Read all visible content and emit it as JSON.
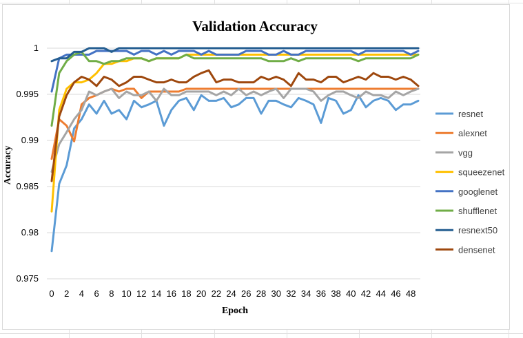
{
  "chart_data": {
    "type": "line",
    "title": "Validation Accuracy",
    "xlabel": "Epoch",
    "ylabel": "Accuracy",
    "ylim": [
      0.975,
      1.0
    ],
    "yticks": [
      "0.975",
      "0.98",
      "0.985",
      "0.99",
      "0.995",
      "1"
    ],
    "xticks": [
      "0",
      "2",
      "4",
      "6",
      "8",
      "10",
      "12",
      "14",
      "16",
      "18",
      "20",
      "22",
      "24",
      "26",
      "28",
      "30",
      "32",
      "34",
      "36",
      "38",
      "40",
      "42",
      "44",
      "46",
      "48"
    ],
    "grid": "horizontal",
    "legend_position": "right",
    "x": [
      0,
      1,
      2,
      3,
      4,
      5,
      6,
      7,
      8,
      9,
      10,
      11,
      12,
      13,
      14,
      15,
      16,
      17,
      18,
      19,
      20,
      21,
      22,
      23,
      24,
      25,
      26,
      27,
      28,
      29,
      30,
      31,
      32,
      33,
      34,
      35,
      36,
      37,
      38,
      39,
      40,
      41,
      42,
      43,
      44,
      45,
      46,
      47,
      48,
      49
    ],
    "series": [
      {
        "name": "resnet",
        "color": "#5b9bd5",
        "values": [
          0.978,
          0.9853,
          0.9873,
          0.9913,
          0.9923,
          0.9939,
          0.9929,
          0.9943,
          0.9929,
          0.9933,
          0.9923,
          0.9943,
          0.9936,
          0.9939,
          0.9943,
          0.9916,
          0.9933,
          0.9943,
          0.9946,
          0.9933,
          0.9949,
          0.9943,
          0.9943,
          0.9946,
          0.9936,
          0.9939,
          0.9946,
          0.9946,
          0.9929,
          0.9943,
          0.9943,
          0.9939,
          0.9936,
          0.9946,
          0.9943,
          0.9939,
          0.9919,
          0.9946,
          0.9943,
          0.9929,
          0.9933,
          0.9949,
          0.9936,
          0.9943,
          0.9946,
          0.9943,
          0.9933,
          0.9939,
          0.9939,
          0.9943
        ]
      },
      {
        "name": "alexnet",
        "color": "#ed7d31",
        "values": [
          0.988,
          0.9923,
          0.9916,
          0.9899,
          0.9939,
          0.9946,
          0.9949,
          0.9953,
          0.9956,
          0.9953,
          0.9956,
          0.9956,
          0.9946,
          0.9953,
          0.9953,
          0.9953,
          0.9953,
          0.9953,
          0.9956,
          0.9956,
          0.9956,
          0.9956,
          0.9956,
          0.9956,
          0.9956,
          0.9956,
          0.9956,
          0.9956,
          0.9956,
          0.9956,
          0.9956,
          0.9956,
          0.9956,
          0.9956,
          0.9956,
          0.9956,
          0.9956,
          0.9956,
          0.9956,
          0.9956,
          0.9956,
          0.9956,
          0.9956,
          0.9956,
          0.9956,
          0.9956,
          0.9956,
          0.9956,
          0.9956,
          0.9956
        ]
      },
      {
        "name": "vgg",
        "color": "#a5a5a5",
        "values": [
          0.9866,
          0.9896,
          0.9909,
          0.9923,
          0.9933,
          0.9953,
          0.9949,
          0.9953,
          0.9956,
          0.9946,
          0.9953,
          0.9949,
          0.9949,
          0.9953,
          0.9943,
          0.9956,
          0.9949,
          0.9949,
          0.9953,
          0.9953,
          0.9953,
          0.9953,
          0.9949,
          0.9953,
          0.9949,
          0.9956,
          0.9949,
          0.9953,
          0.9949,
          0.9953,
          0.9956,
          0.9946,
          0.9956,
          0.9956,
          0.9956,
          0.9953,
          0.9943,
          0.9949,
          0.9953,
          0.9953,
          0.9949,
          0.9946,
          0.9953,
          0.9949,
          0.9949,
          0.9946,
          0.9953,
          0.9949,
          0.9953,
          0.9956
        ]
      },
      {
        "name": "squeezenet",
        "color": "#ffc000",
        "values": [
          0.9823,
          0.9933,
          0.9956,
          0.9963,
          0.9963,
          0.9966,
          0.9973,
          0.9983,
          0.9983,
          0.9986,
          0.9986,
          0.9989,
          0.9989,
          0.9986,
          0.9989,
          0.9989,
          0.9989,
          0.9989,
          0.9993,
          0.9993,
          0.9993,
          0.9993,
          0.9993,
          0.9993,
          0.9993,
          0.9993,
          0.9993,
          0.9993,
          0.9993,
          0.9993,
          0.9993,
          0.9993,
          0.9993,
          0.9993,
          0.9993,
          0.9993,
          0.9993,
          0.9993,
          0.9993,
          0.9993,
          0.9993,
          0.9993,
          0.9993,
          0.9993,
          0.9993,
          0.9993,
          0.9993,
          0.9993,
          0.9993,
          0.9993
        ]
      },
      {
        "name": "googlenet",
        "color": "#4472c4",
        "values": [
          0.9953,
          0.9989,
          0.9993,
          0.9993,
          0.9993,
          0.9993,
          0.9997,
          0.9997,
          0.9997,
          0.9997,
          0.9997,
          0.9993,
          0.9997,
          0.9997,
          0.9993,
          0.9997,
          0.9993,
          0.9997,
          0.9997,
          0.9997,
          0.9993,
          0.9997,
          0.9993,
          0.9993,
          0.9993,
          0.9993,
          0.9997,
          0.9997,
          0.9997,
          0.9993,
          0.9993,
          0.9997,
          0.9993,
          0.9993,
          0.9997,
          0.9997,
          0.9997,
          0.9997,
          0.9997,
          0.9997,
          0.9997,
          0.9993,
          0.9997,
          0.9997,
          0.9997,
          0.9997,
          0.9997,
          0.9997,
          0.9993,
          0.9997
        ]
      },
      {
        "name": "shufflenet",
        "color": "#70ad47",
        "values": [
          0.9916,
          0.9973,
          0.9986,
          0.9993,
          0.9996,
          0.9986,
          0.9986,
          0.9983,
          0.9986,
          0.9986,
          0.9989,
          0.9989,
          0.9989,
          0.9986,
          0.9989,
          0.9989,
          0.9989,
          0.9989,
          0.9993,
          0.9989,
          0.9989,
          0.9989,
          0.9989,
          0.9989,
          0.9989,
          0.9989,
          0.9989,
          0.9989,
          0.9989,
          0.9986,
          0.9986,
          0.9986,
          0.9989,
          0.9986,
          0.9989,
          0.9989,
          0.9989,
          0.9989,
          0.9989,
          0.9989,
          0.9989,
          0.9986,
          0.9989,
          0.9989,
          0.9989,
          0.9989,
          0.9989,
          0.9989,
          0.9989,
          0.9993
        ]
      },
      {
        "name": "resnext50",
        "color": "#255e91",
        "values": [
          0.9986,
          0.9989,
          0.9989,
          0.9996,
          0.9996,
          1.0,
          1.0,
          1.0,
          0.9996,
          1.0,
          1.0,
          1.0,
          1.0,
          1.0,
          1.0,
          1.0,
          1.0,
          1.0,
          1.0,
          1.0,
          1.0,
          1.0,
          1.0,
          1.0,
          1.0,
          1.0,
          1.0,
          1.0,
          1.0,
          1.0,
          1.0,
          1.0,
          1.0,
          1.0,
          1.0,
          1.0,
          1.0,
          1.0,
          1.0,
          1.0,
          1.0,
          1.0,
          1.0,
          1.0,
          1.0,
          1.0,
          1.0,
          1.0,
          1.0,
          1.0
        ]
      },
      {
        "name": "densenet",
        "color": "#9e480e",
        "values": [
          0.9856,
          0.9926,
          0.9949,
          0.9963,
          0.9969,
          0.9966,
          0.9959,
          0.9969,
          0.9966,
          0.9959,
          0.9963,
          0.9969,
          0.9969,
          0.9966,
          0.9963,
          0.9963,
          0.9966,
          0.9963,
          0.9963,
          0.9969,
          0.9973,
          0.9976,
          0.9963,
          0.9966,
          0.9966,
          0.9963,
          0.9963,
          0.9963,
          0.9969,
          0.9966,
          0.9969,
          0.9966,
          0.9959,
          0.9973,
          0.9966,
          0.9966,
          0.9963,
          0.9969,
          0.9969,
          0.9963,
          0.9966,
          0.9969,
          0.9966,
          0.9973,
          0.9969,
          0.9969,
          0.9966,
          0.9969,
          0.9966,
          0.9959
        ]
      }
    ]
  }
}
